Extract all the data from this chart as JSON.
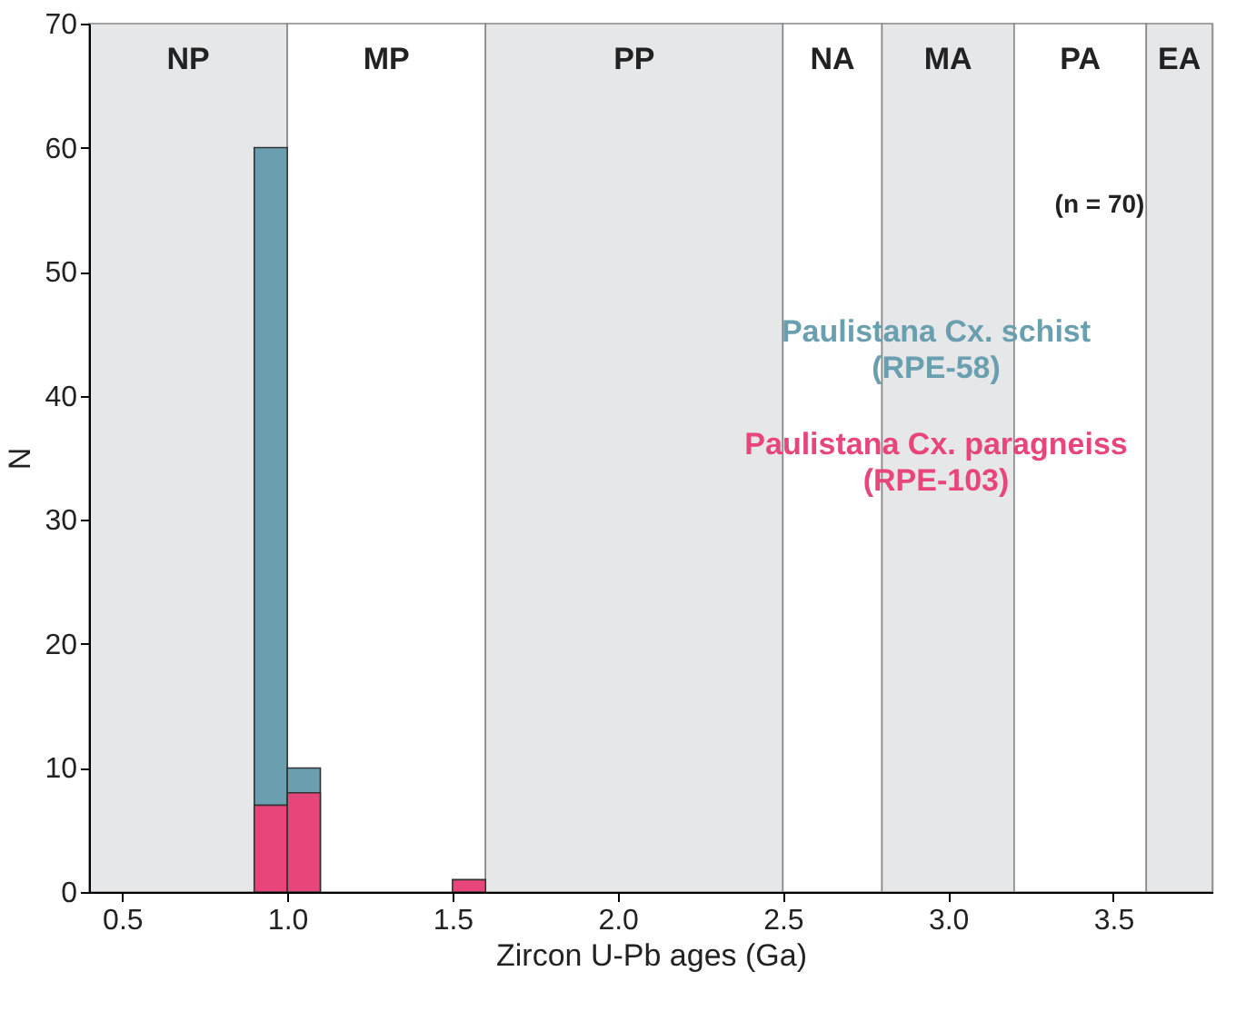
{
  "chart_data": {
    "type": "histogram",
    "xlabel": "Zircon U-Pb ages (Ga)",
    "ylabel": "N",
    "bins": [
      0.9,
      1.0,
      1.1,
      1.2,
      1.3,
      1.4,
      1.5,
      1.6
    ],
    "series": [
      {
        "name": "Paulistana Cx. schist (RPE-58)",
        "color": "#6a9fb0",
        "values": [
          60,
          10,
          0,
          0,
          0,
          0,
          0
        ]
      },
      {
        "name": "Paulistana Cx. paragneiss (RPE-103)",
        "color": "#e8457a",
        "values": [
          7,
          8,
          0,
          0,
          0,
          0,
          1
        ]
      }
    ],
    "xlim": [
      0.4,
      3.8
    ],
    "xticks": [
      0.5,
      {
        "value": 1,
        "label": "1.0"
      },
      1.5,
      {
        "value": 2,
        "label": "2.0"
      },
      2.5,
      {
        "value": 3,
        "label": "3.0"
      },
      3.5
    ],
    "ylim": [
      0,
      70
    ],
    "yticks": [
      0,
      10,
      20,
      30,
      40,
      50,
      60,
      70
    ],
    "bands": [
      {
        "axis": "x",
        "from": 0.4,
        "to": 1.0,
        "label": "NP",
        "color": "#e6e7e8"
      },
      {
        "axis": "x",
        "from": 1.0,
        "to": 1.6,
        "label": "MP",
        "color": "#ffffff"
      },
      {
        "axis": "x",
        "from": 1.6,
        "to": 2.5,
        "label": "PP",
        "color": "#e6e7e8"
      },
      {
        "axis": "x",
        "from": 2.5,
        "to": 2.8,
        "label": "NA",
        "color": "#ffffff"
      },
      {
        "axis": "x",
        "from": 2.8,
        "to": 3.2,
        "label": "MA",
        "color": "#e6e7e8"
      },
      {
        "axis": "x",
        "from": 3.2,
        "to": 3.6,
        "label": "PA",
        "color": "#ffffff"
      },
      {
        "axis": "x",
        "from": 3.6,
        "to": 3.8,
        "label": "EA",
        "color": "#e6e7e8"
      }
    ],
    "annotations": [
      "(n = 70)"
    ],
    "grid": false,
    "legend": false
  }
}
